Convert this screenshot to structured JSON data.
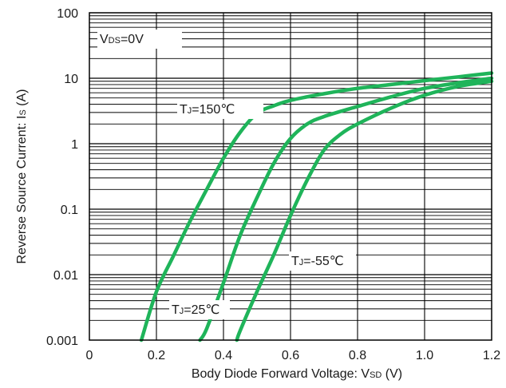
{
  "chart_data": {
    "type": "line",
    "title": "",
    "xlabel": {
      "main": "Body Diode Forward Voltage: V",
      "sub": "SD",
      "unit": " (V)"
    },
    "ylabel": {
      "main": "Reverse Source Current: I",
      "sub": "S",
      "unit": " (A)"
    },
    "xlim": [
      0,
      1.2
    ],
    "ylim": [
      0.001,
      100
    ],
    "yscale": "log",
    "grid": true,
    "x_ticks": [
      0,
      0.2,
      0.4,
      0.6,
      0.8,
      1.0,
      1.2
    ],
    "x_tick_labels": [
      "0",
      "0.2",
      "0.4",
      "0.6",
      "0.8",
      "1.0",
      "1.2"
    ],
    "y_ticks": [
      0.001,
      0.01,
      0.1,
      1,
      10,
      100
    ],
    "y_tick_labels": [
      "0.001",
      "0.01",
      "0.1",
      "1",
      "10",
      "100"
    ],
    "line_color": "#1fb45a",
    "condition": {
      "main": "V",
      "sub": "DS",
      "rest": "=0V"
    },
    "series": [
      {
        "name": {
          "main": "T",
          "sub": "J",
          "rest": "=150℃"
        },
        "x": [
          0.155,
          0.2,
          0.25,
          0.3,
          0.35,
          0.4,
          0.45,
          0.5,
          0.55,
          0.6,
          0.7,
          0.8,
          0.9,
          1.0,
          1.1,
          1.2
        ],
        "y": [
          0.001,
          0.0055,
          0.019,
          0.065,
          0.2,
          0.6,
          1.5,
          2.9,
          3.8,
          4.6,
          5.8,
          7.0,
          8.0,
          9.2,
          10.5,
          12
        ]
      },
      {
        "name": {
          "main": "T",
          "sub": "J",
          "rest": "=25℃"
        },
        "x": [
          0.33,
          0.35,
          0.4,
          0.45,
          0.5,
          0.55,
          0.6,
          0.65,
          0.7,
          0.8,
          0.9,
          1.0,
          1.1,
          1.2
        ],
        "y": [
          0.001,
          0.0015,
          0.0075,
          0.04,
          0.15,
          0.5,
          1.2,
          2.0,
          2.6,
          3.7,
          5.2,
          7.0,
          8.5,
          10
        ]
      },
      {
        "name": {
          "main": "T",
          "sub": "J",
          "rest": "=-55℃"
        },
        "x": [
          0.44,
          0.45,
          0.5,
          0.55,
          0.6,
          0.65,
          0.7,
          0.75,
          0.8,
          0.9,
          1.0,
          1.1,
          1.2
        ],
        "y": [
          0.001,
          0.0014,
          0.0055,
          0.02,
          0.08,
          0.28,
          0.8,
          1.4,
          2.0,
          3.5,
          5.5,
          7.5,
          9.0
        ]
      }
    ]
  }
}
